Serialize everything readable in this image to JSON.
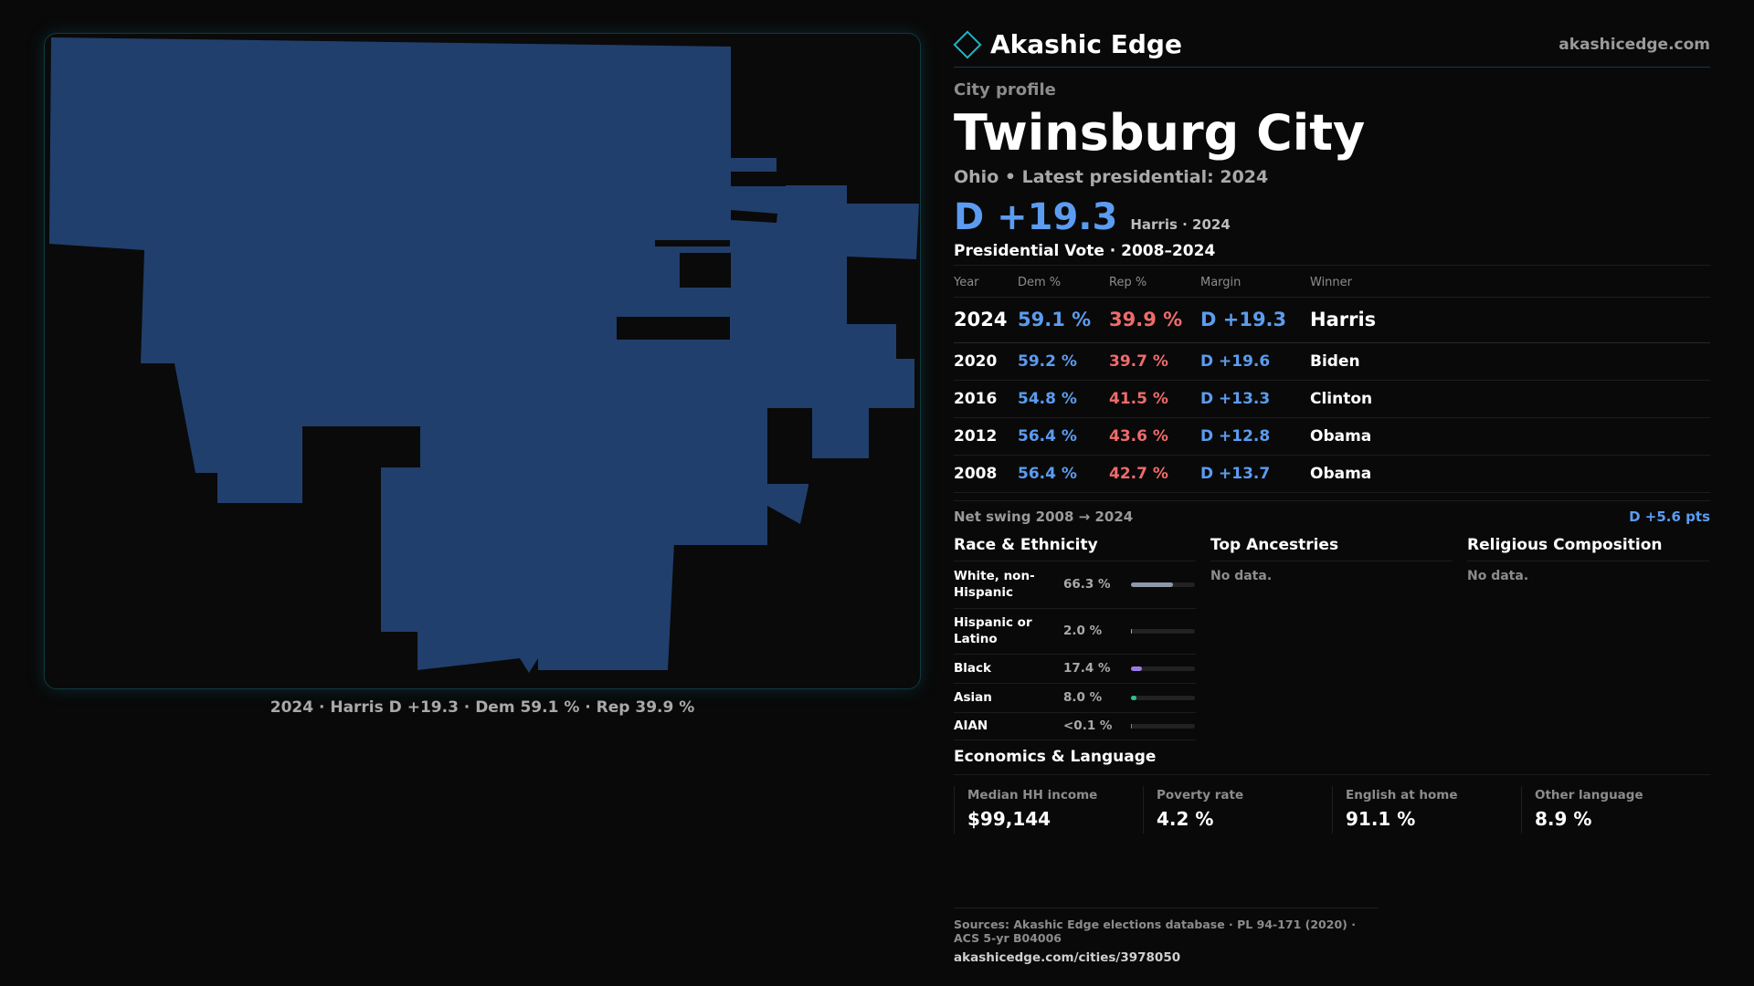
{
  "map": {
    "caption": "2024 · Harris D +19.3 · Dem 59.1 % · Rep 39.9 %",
    "fill_color": "#213f6c"
  },
  "header": {
    "brand_name": "Akashic Edge",
    "brand_url": "akashicedge.com",
    "brand_icon": "diamond-logo-icon"
  },
  "profile": {
    "kicker": "City profile",
    "city": "Twinsburg City",
    "subtitle": "Ohio • Latest presidential: 2024",
    "margin": "D +19.3",
    "margin_note": "Harris · 2024"
  },
  "presidential": {
    "title": "Presidential Vote · 2008–2024",
    "columns": [
      "Year",
      "Dem %",
      "Rep %",
      "Margin",
      "Winner"
    ],
    "rows": [
      {
        "year": "2024",
        "dem": "59.1 %",
        "rep": "39.9 %",
        "margin": "D +19.3",
        "winner": "Harris"
      },
      {
        "year": "2020",
        "dem": "59.2 %",
        "rep": "39.7 %",
        "margin": "D +19.6",
        "winner": "Biden"
      },
      {
        "year": "2016",
        "dem": "54.8 %",
        "rep": "41.5 %",
        "margin": "D +13.3",
        "winner": "Clinton"
      },
      {
        "year": "2012",
        "dem": "56.4 %",
        "rep": "43.6 %",
        "margin": "D +12.8",
        "winner": "Obama"
      },
      {
        "year": "2008",
        "dem": "56.4 %",
        "rep": "42.7 %",
        "margin": "D +13.7",
        "winner": "Obama"
      }
    ],
    "swing_label": "Net swing 2008 → 2024",
    "swing_value": "D +5.6 pts"
  },
  "race": {
    "title": "Race & Ethnicity",
    "rows": [
      {
        "label": "White, non-Hispanic",
        "pct": "66.3 %",
        "share": 66.3,
        "color": "#8f97ad"
      },
      {
        "label": "Hispanic or Latino",
        "pct": "2.0 %",
        "share": 2.0,
        "color": "#e0a030"
      },
      {
        "label": "Black",
        "pct": "17.4 %",
        "share": 17.4,
        "color": "#9b7be0"
      },
      {
        "label": "Asian",
        "pct": "8.0 %",
        "share": 8.0,
        "color": "#2fbf8f"
      },
      {
        "label": "AIAN",
        "pct": "<0.1 %",
        "share": 0.05,
        "color": "#c07070"
      }
    ]
  },
  "ancestries": {
    "title": "Top Ancestries",
    "empty": "No data."
  },
  "religion": {
    "title": "Religious Composition",
    "empty": "No data."
  },
  "economics": {
    "title": "Economics & Language",
    "cells": [
      {
        "label": "Median HH income",
        "value": "$99,144"
      },
      {
        "label": "Poverty rate",
        "value": "4.2 %"
      },
      {
        "label": "English at home",
        "value": "91.1 %"
      },
      {
        "label": "Other language",
        "value": "8.9 %"
      }
    ]
  },
  "sources": {
    "line": "Sources: Akashic Edge elections database · PL 94-171 (2020) · ACS 5-yr B04006",
    "url": "akashicedge.com/cities/3978050"
  }
}
